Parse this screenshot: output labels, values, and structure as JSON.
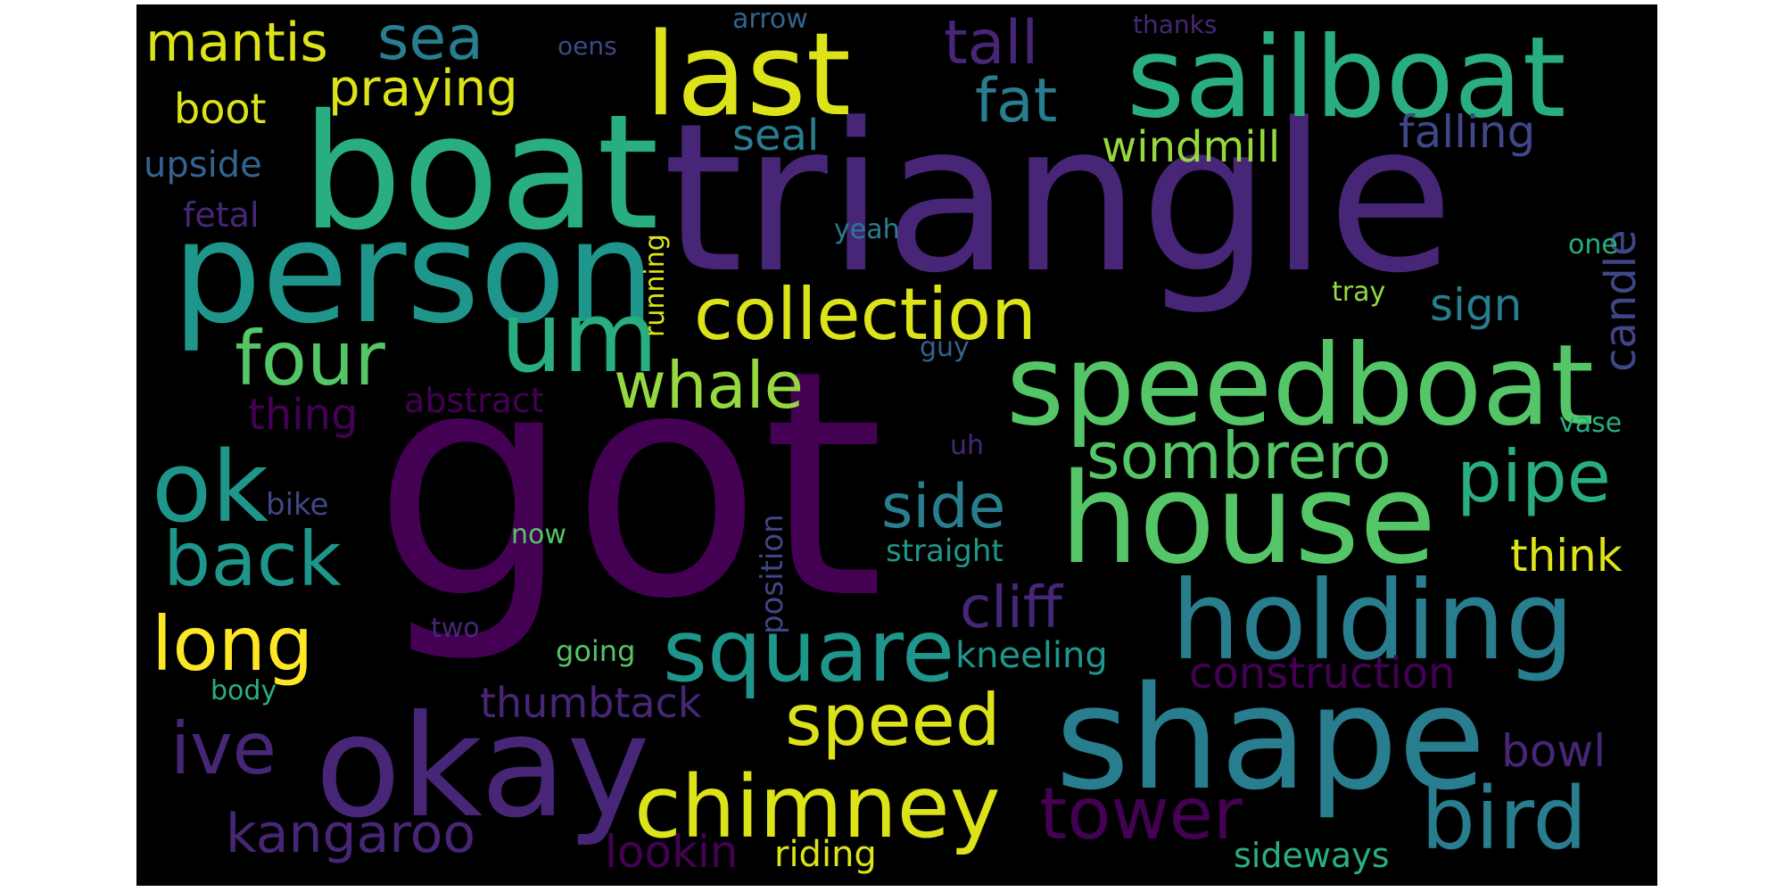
{
  "colors": {
    "background": "#000000",
    "palette": {
      "v0": "#440154",
      "v1": "#482677",
      "v2": "#404788",
      "v3": "#33638d",
      "v4": "#287d8e",
      "v5": "#1f968b",
      "v6": "#29af7f",
      "v7": "#55c667",
      "v8": "#95d840",
      "v9": "#dce319",
      "v10": "#fde725"
    }
  },
  "words": [
    {
      "text": "got",
      "color": "#440154"
    },
    {
      "text": "triangle",
      "color": "#482677"
    },
    {
      "text": "boat",
      "color": "#29af7f"
    },
    {
      "text": "person",
      "color": "#1f968b"
    },
    {
      "text": "shape",
      "color": "#287d8e"
    },
    {
      "text": "house",
      "color": "#55c667"
    },
    {
      "text": "okay",
      "color": "#482677"
    },
    {
      "text": "sailboat",
      "color": "#29af7f"
    },
    {
      "text": "speedboat",
      "color": "#55c667"
    },
    {
      "text": "holding",
      "color": "#287d8e"
    },
    {
      "text": "last",
      "color": "#dce319"
    },
    {
      "text": "um",
      "color": "#29af7f"
    },
    {
      "text": "ok",
      "color": "#1f968b"
    },
    {
      "text": "chimney",
      "color": "#dce319"
    },
    {
      "text": "square",
      "color": "#1f968b"
    },
    {
      "text": "bird",
      "color": "#287d8e"
    },
    {
      "text": "collection",
      "color": "#dce319"
    },
    {
      "text": "four",
      "color": "#55c667"
    },
    {
      "text": "long",
      "color": "#fde725"
    },
    {
      "text": "back",
      "color": "#1f968b"
    },
    {
      "text": "speed",
      "color": "#dce319"
    },
    {
      "text": "whale",
      "color": "#95d840"
    },
    {
      "text": "sombrero",
      "color": "#55c667"
    },
    {
      "text": "pipe",
      "color": "#29af7f"
    },
    {
      "text": "tower",
      "color": "#440154"
    },
    {
      "text": "ive",
      "color": "#482677"
    },
    {
      "text": "kangaroo",
      "color": "#482677"
    },
    {
      "text": "side",
      "color": "#287d8e"
    },
    {
      "text": "sea",
      "color": "#287d8e"
    },
    {
      "text": "tall",
      "color": "#482677"
    },
    {
      "text": "fat",
      "color": "#287d8e"
    },
    {
      "text": "mantis",
      "color": "#dce319"
    },
    {
      "text": "praying",
      "color": "#dce319"
    },
    {
      "text": "cliff",
      "color": "#482677"
    },
    {
      "text": "construction",
      "color": "#440154"
    },
    {
      "text": "windmill",
      "color": "#95d840"
    },
    {
      "text": "falling",
      "color": "#404788"
    },
    {
      "text": "sign",
      "color": "#287d8e"
    },
    {
      "text": "think",
      "color": "#dce319"
    },
    {
      "text": "bowl",
      "color": "#482677"
    },
    {
      "text": "thumbtack",
      "color": "#482677"
    },
    {
      "text": "lookin",
      "color": "#440154"
    },
    {
      "text": "candle",
      "color": "#404788"
    },
    {
      "text": "thing",
      "color": "#440154"
    },
    {
      "text": "abstract",
      "color": "#440154"
    },
    {
      "text": "seal",
      "color": "#287d8e"
    },
    {
      "text": "boot",
      "color": "#dce319"
    },
    {
      "text": "upside",
      "color": "#33638d"
    },
    {
      "text": "fetal",
      "color": "#482677"
    },
    {
      "text": "riding",
      "color": "#dce319"
    },
    {
      "text": "sideways",
      "color": "#29af7f"
    },
    {
      "text": "kneeling",
      "color": "#1f968b"
    },
    {
      "text": "straight",
      "color": "#1f968b"
    },
    {
      "text": "position",
      "color": "#404788"
    },
    {
      "text": "running",
      "color": "#dce319"
    },
    {
      "text": "bike",
      "color": "#404788"
    },
    {
      "text": "now",
      "color": "#55c667"
    },
    {
      "text": "two",
      "color": "#482677"
    },
    {
      "text": "going",
      "color": "#55c667"
    },
    {
      "text": "body",
      "color": "#29af7f"
    },
    {
      "text": "guy",
      "color": "#33638d"
    },
    {
      "text": "uh",
      "color": "#482677"
    },
    {
      "text": "vase",
      "color": "#29af7f"
    },
    {
      "text": "tray",
      "color": "#95d840"
    },
    {
      "text": "one",
      "color": "#29af7f"
    },
    {
      "text": "yeah",
      "color": "#287d8e"
    },
    {
      "text": "arrow",
      "color": "#33638d"
    },
    {
      "text": "oens",
      "color": "#404788"
    },
    {
      "text": "thanks",
      "color": "#482677"
    }
  ]
}
